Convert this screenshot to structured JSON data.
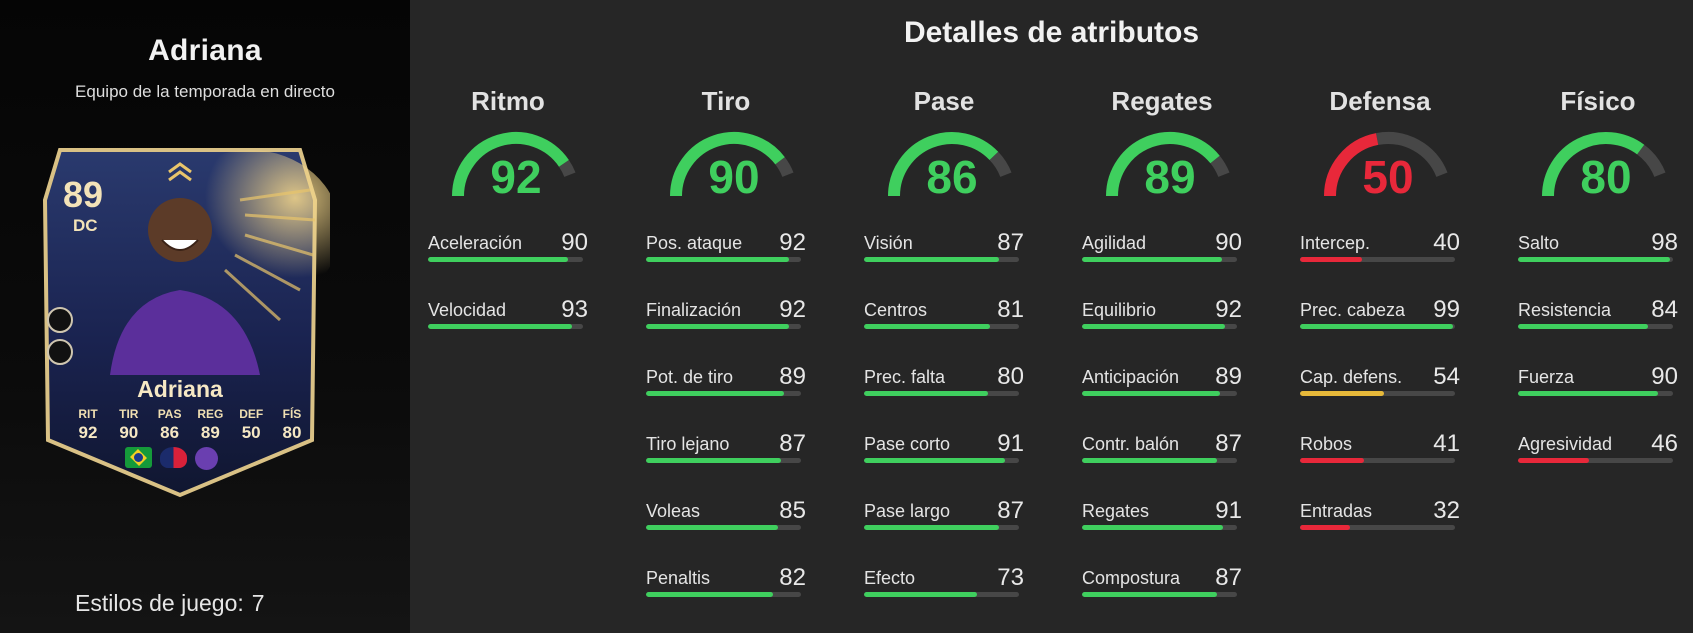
{
  "player": {
    "name": "Adriana",
    "subtitle": "Equipo de la temporada en directo",
    "playstyles_label": "Estilos de juego:",
    "playstyles_count": "7"
  },
  "card": {
    "rating": "89",
    "position": "DC",
    "name": "Adriana",
    "stats": [
      {
        "label": "RIT",
        "value": "92"
      },
      {
        "label": "TIR",
        "value": "90"
      },
      {
        "label": "PAS",
        "value": "86"
      },
      {
        "label": "REG",
        "value": "89"
      },
      {
        "label": "DEF",
        "value": "50"
      },
      {
        "label": "FÍS",
        "value": "80"
      }
    ],
    "badges": [
      "brazil-flag-icon",
      "league-badge-icon",
      "club-badge-icon"
    ]
  },
  "details_title": "Detalles de atributos",
  "colors": {
    "green": "#3fcf5e",
    "red": "#e8283a",
    "yellow": "#e7b93a",
    "track": "#474747"
  },
  "categories": [
    {
      "name": "Ritmo",
      "value": 92,
      "color": "#3fcf5e",
      "attributes": [
        {
          "label": "Aceleración",
          "value": 90,
          "color": "#3fcf5e"
        },
        {
          "label": "Velocidad",
          "value": 93,
          "color": "#3fcf5e"
        }
      ]
    },
    {
      "name": "Tiro",
      "value": 90,
      "color": "#3fcf5e",
      "attributes": [
        {
          "label": "Pos. ataque",
          "value": 92,
          "color": "#3fcf5e"
        },
        {
          "label": "Finalización",
          "value": 92,
          "color": "#3fcf5e"
        },
        {
          "label": "Pot. de tiro",
          "value": 89,
          "color": "#3fcf5e"
        },
        {
          "label": "Tiro lejano",
          "value": 87,
          "color": "#3fcf5e"
        },
        {
          "label": "Voleas",
          "value": 85,
          "color": "#3fcf5e"
        },
        {
          "label": "Penaltis",
          "value": 82,
          "color": "#3fcf5e"
        }
      ]
    },
    {
      "name": "Pase",
      "value": 86,
      "color": "#3fcf5e",
      "attributes": [
        {
          "label": "Visión",
          "value": 87,
          "color": "#3fcf5e"
        },
        {
          "label": "Centros",
          "value": 81,
          "color": "#3fcf5e"
        },
        {
          "label": "Prec. falta",
          "value": 80,
          "color": "#3fcf5e"
        },
        {
          "label": "Pase corto",
          "value": 91,
          "color": "#3fcf5e"
        },
        {
          "label": "Pase largo",
          "value": 87,
          "color": "#3fcf5e"
        },
        {
          "label": "Efecto",
          "value": 73,
          "color": "#3fcf5e"
        }
      ]
    },
    {
      "name": "Regates",
      "value": 89,
      "color": "#3fcf5e",
      "attributes": [
        {
          "label": "Agilidad",
          "value": 90,
          "color": "#3fcf5e"
        },
        {
          "label": "Equilibrio",
          "value": 92,
          "color": "#3fcf5e"
        },
        {
          "label": "Anticipación",
          "value": 89,
          "color": "#3fcf5e"
        },
        {
          "label": "Contr. balón",
          "value": 87,
          "color": "#3fcf5e"
        },
        {
          "label": "Regates",
          "value": 91,
          "color": "#3fcf5e"
        },
        {
          "label": "Compostura",
          "value": 87,
          "color": "#3fcf5e"
        }
      ]
    },
    {
      "name": "Defensa",
      "value": 50,
      "color": "#e8283a",
      "attributes": [
        {
          "label": "Intercep.",
          "value": 40,
          "color": "#e8283a"
        },
        {
          "label": "Prec. cabeza",
          "value": 99,
          "color": "#3fcf5e"
        },
        {
          "label": "Cap. defens.",
          "value": 54,
          "color": "#e7b93a"
        },
        {
          "label": "Robos",
          "value": 41,
          "color": "#e8283a"
        },
        {
          "label": "Entradas",
          "value": 32,
          "color": "#e8283a"
        }
      ]
    },
    {
      "name": "Físico",
      "value": 80,
      "color": "#3fcf5e",
      "attributes": [
        {
          "label": "Salto",
          "value": 98,
          "color": "#3fcf5e"
        },
        {
          "label": "Resistencia",
          "value": 84,
          "color": "#3fcf5e"
        },
        {
          "label": "Fuerza",
          "value": 90,
          "color": "#3fcf5e"
        },
        {
          "label": "Agresividad",
          "value": 46,
          "color": "#e8283a"
        }
      ]
    }
  ]
}
